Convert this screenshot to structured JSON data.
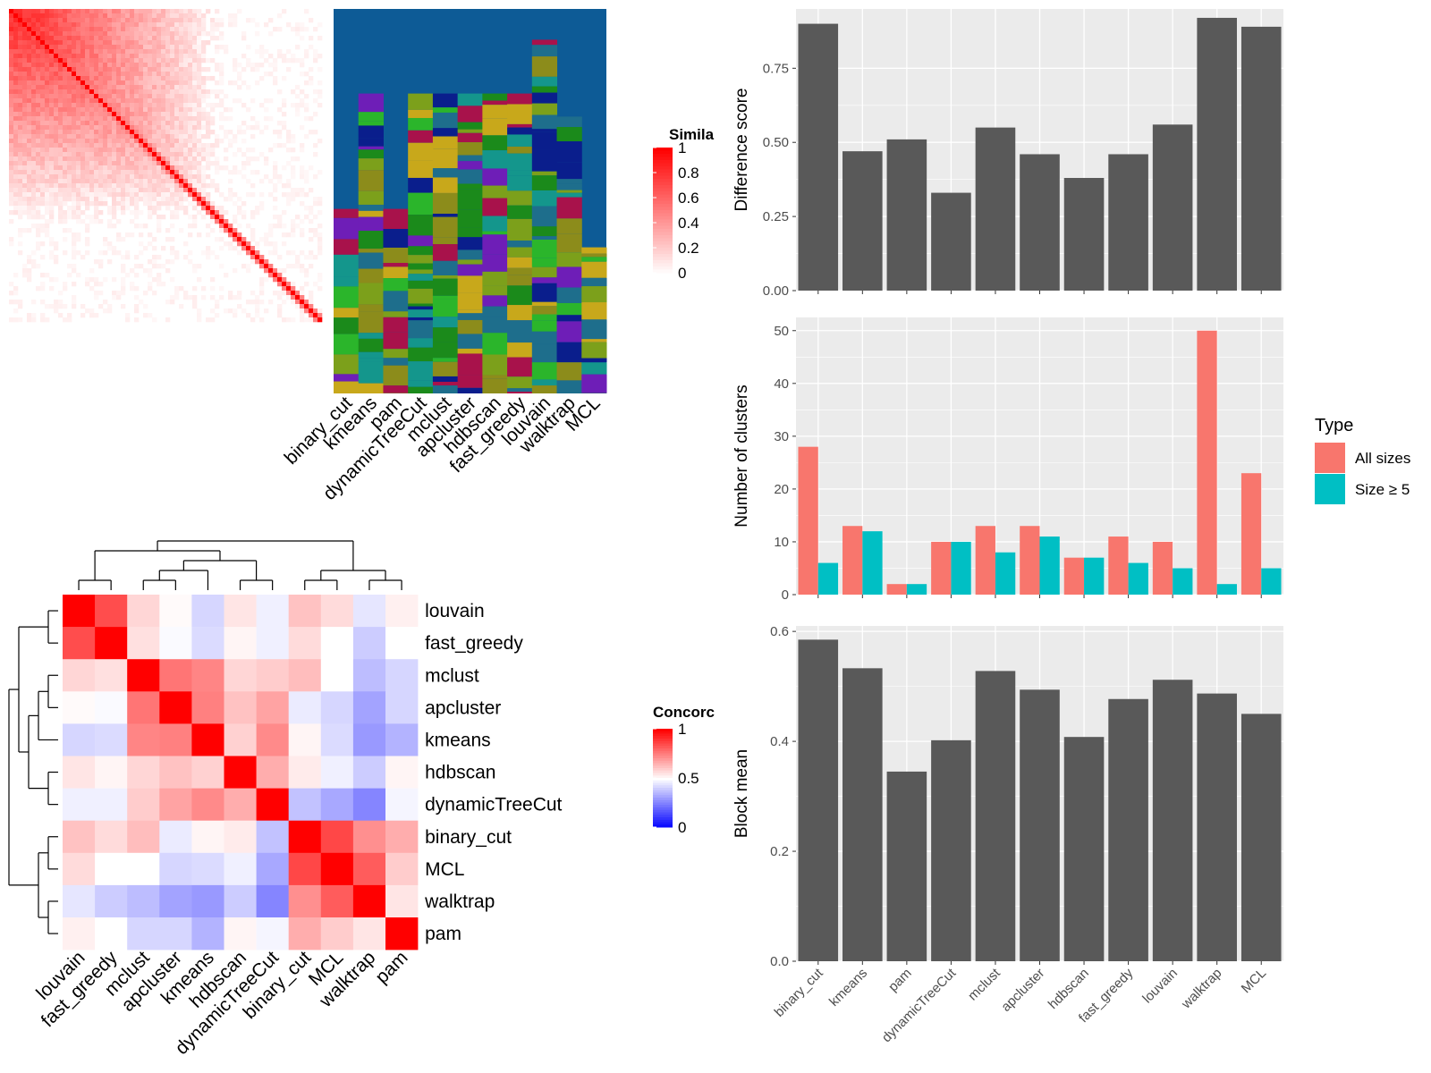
{
  "methods": [
    "binary_cut",
    "kmeans",
    "pam",
    "dynamicTreeCut",
    "mclust",
    "apcluster",
    "hdbscan",
    "fast_greedy",
    "louvain",
    "walktrap",
    "MCL"
  ],
  "colors": {
    "bar_dark": "#595959",
    "panel_bg": "#EBEBEB",
    "grid": "#FFFFFF",
    "all_sizes": "#F8766D",
    "size_ge5": "#00BFC4",
    "sim_high": "#FF0000",
    "conc_low": "#0000FF",
    "conc_mid": "#FFFFFF",
    "conc_high": "#FF0000",
    "cluster_bg": "#0D5B96"
  },
  "similarity_heatmap": {
    "legend_title": "Simila",
    "legend_ticks": [
      "1",
      "0.8",
      "0.6",
      "0.4",
      "0.2",
      "0"
    ],
    "cluster_palette": [
      "#0D5B96",
      "#1B8A1B",
      "#7CA01B",
      "#A8124B",
      "#6E1EB7",
      "#14968C",
      "#0A1E8C",
      "#C8A81B",
      "#2BB52B",
      "#1E6E8C",
      "#8C8C1B"
    ]
  },
  "concordance_heatmap": {
    "legend_title": "Concorc",
    "legend_ticks": [
      "1",
      "0.5",
      "0"
    ],
    "order": [
      "louvain",
      "fast_greedy",
      "mclust",
      "apcluster",
      "kmeans",
      "hdbscan",
      "dynamicTreeCut",
      "binary_cut",
      "MCL",
      "walktrap",
      "pam"
    ],
    "matrix": [
      [
        1.0,
        0.85,
        0.58,
        0.51,
        0.42,
        0.55,
        0.47,
        0.62,
        0.57,
        0.45,
        0.53
      ],
      [
        0.85,
        1.0,
        0.56,
        0.49,
        0.43,
        0.52,
        0.47,
        0.57,
        0.5,
        0.4,
        0.5
      ],
      [
        0.58,
        0.56,
        1.0,
        0.77,
        0.74,
        0.58,
        0.6,
        0.63,
        0.5,
        0.37,
        0.42
      ],
      [
        0.51,
        0.49,
        0.77,
        1.0,
        0.75,
        0.62,
        0.68,
        0.46,
        0.42,
        0.32,
        0.42
      ],
      [
        0.42,
        0.43,
        0.74,
        0.75,
        1.0,
        0.59,
        0.73,
        0.52,
        0.43,
        0.3,
        0.35
      ],
      [
        0.55,
        0.52,
        0.58,
        0.62,
        0.59,
        1.0,
        0.66,
        0.54,
        0.47,
        0.4,
        0.52
      ],
      [
        0.47,
        0.47,
        0.6,
        0.68,
        0.73,
        0.66,
        1.0,
        0.38,
        0.33,
        0.26,
        0.48
      ],
      [
        0.62,
        0.57,
        0.63,
        0.46,
        0.52,
        0.54,
        0.38,
        1.0,
        0.86,
        0.72,
        0.66
      ],
      [
        0.57,
        0.5,
        0.5,
        0.42,
        0.43,
        0.47,
        0.33,
        0.86,
        1.0,
        0.82,
        0.6
      ],
      [
        0.45,
        0.4,
        0.37,
        0.32,
        0.3,
        0.4,
        0.26,
        0.72,
        0.82,
        1.0,
        0.55
      ],
      [
        0.53,
        0.5,
        0.42,
        0.42,
        0.35,
        0.52,
        0.48,
        0.66,
        0.6,
        0.55,
        1.0
      ]
    ]
  },
  "chart_data": [
    {
      "type": "bar",
      "ylabel": "Difference score",
      "categories": [
        "binary_cut",
        "kmeans",
        "pam",
        "dynamicTreeCut",
        "mclust",
        "apcluster",
        "hdbscan",
        "fast_greedy",
        "louvain",
        "walktrap",
        "MCL"
      ],
      "values": [
        0.9,
        0.47,
        0.51,
        0.33,
        0.55,
        0.46,
        0.38,
        0.46,
        0.56,
        0.92,
        0.89
      ],
      "ylim": [
        0,
        0.95
      ],
      "yticks": [
        0.0,
        0.25,
        0.5,
        0.75
      ],
      "ytick_labels": [
        "0.00",
        "0.25",
        "0.50",
        "0.75"
      ]
    },
    {
      "type": "bar",
      "ylabel": "Number of clusters",
      "categories": [
        "binary_cut",
        "kmeans",
        "pam",
        "dynamicTreeCut",
        "mclust",
        "apcluster",
        "hdbscan",
        "fast_greedy",
        "louvain",
        "walktrap",
        "MCL"
      ],
      "series": [
        {
          "name": "All sizes",
          "values": [
            28,
            13,
            2,
            10,
            13,
            13,
            7,
            11,
            10,
            50,
            23
          ]
        },
        {
          "name": "Size ≥ 5",
          "values": [
            6,
            12,
            2,
            10,
            8,
            11,
            7,
            6,
            5,
            2,
            5
          ]
        }
      ],
      "legend_title": "Type",
      "ylim": [
        0,
        52.5
      ],
      "yticks": [
        0,
        10,
        20,
        30,
        40,
        50
      ],
      "ytick_labels": [
        "0",
        "10",
        "20",
        "30",
        "40",
        "50"
      ]
    },
    {
      "type": "bar",
      "ylabel": "Block mean",
      "categories": [
        "binary_cut",
        "kmeans",
        "pam",
        "dynamicTreeCut",
        "mclust",
        "apcluster",
        "hdbscan",
        "fast_greedy",
        "louvain",
        "walktrap",
        "MCL"
      ],
      "values": [
        0.585,
        0.533,
        0.345,
        0.402,
        0.528,
        0.494,
        0.408,
        0.477,
        0.512,
        0.487,
        0.45
      ],
      "ylim": [
        0,
        0.61
      ],
      "yticks": [
        0.0,
        0.2,
        0.4,
        0.6
      ],
      "ytick_labels": [
        "0.0",
        "0.2",
        "0.4",
        "0.6"
      ]
    }
  ]
}
